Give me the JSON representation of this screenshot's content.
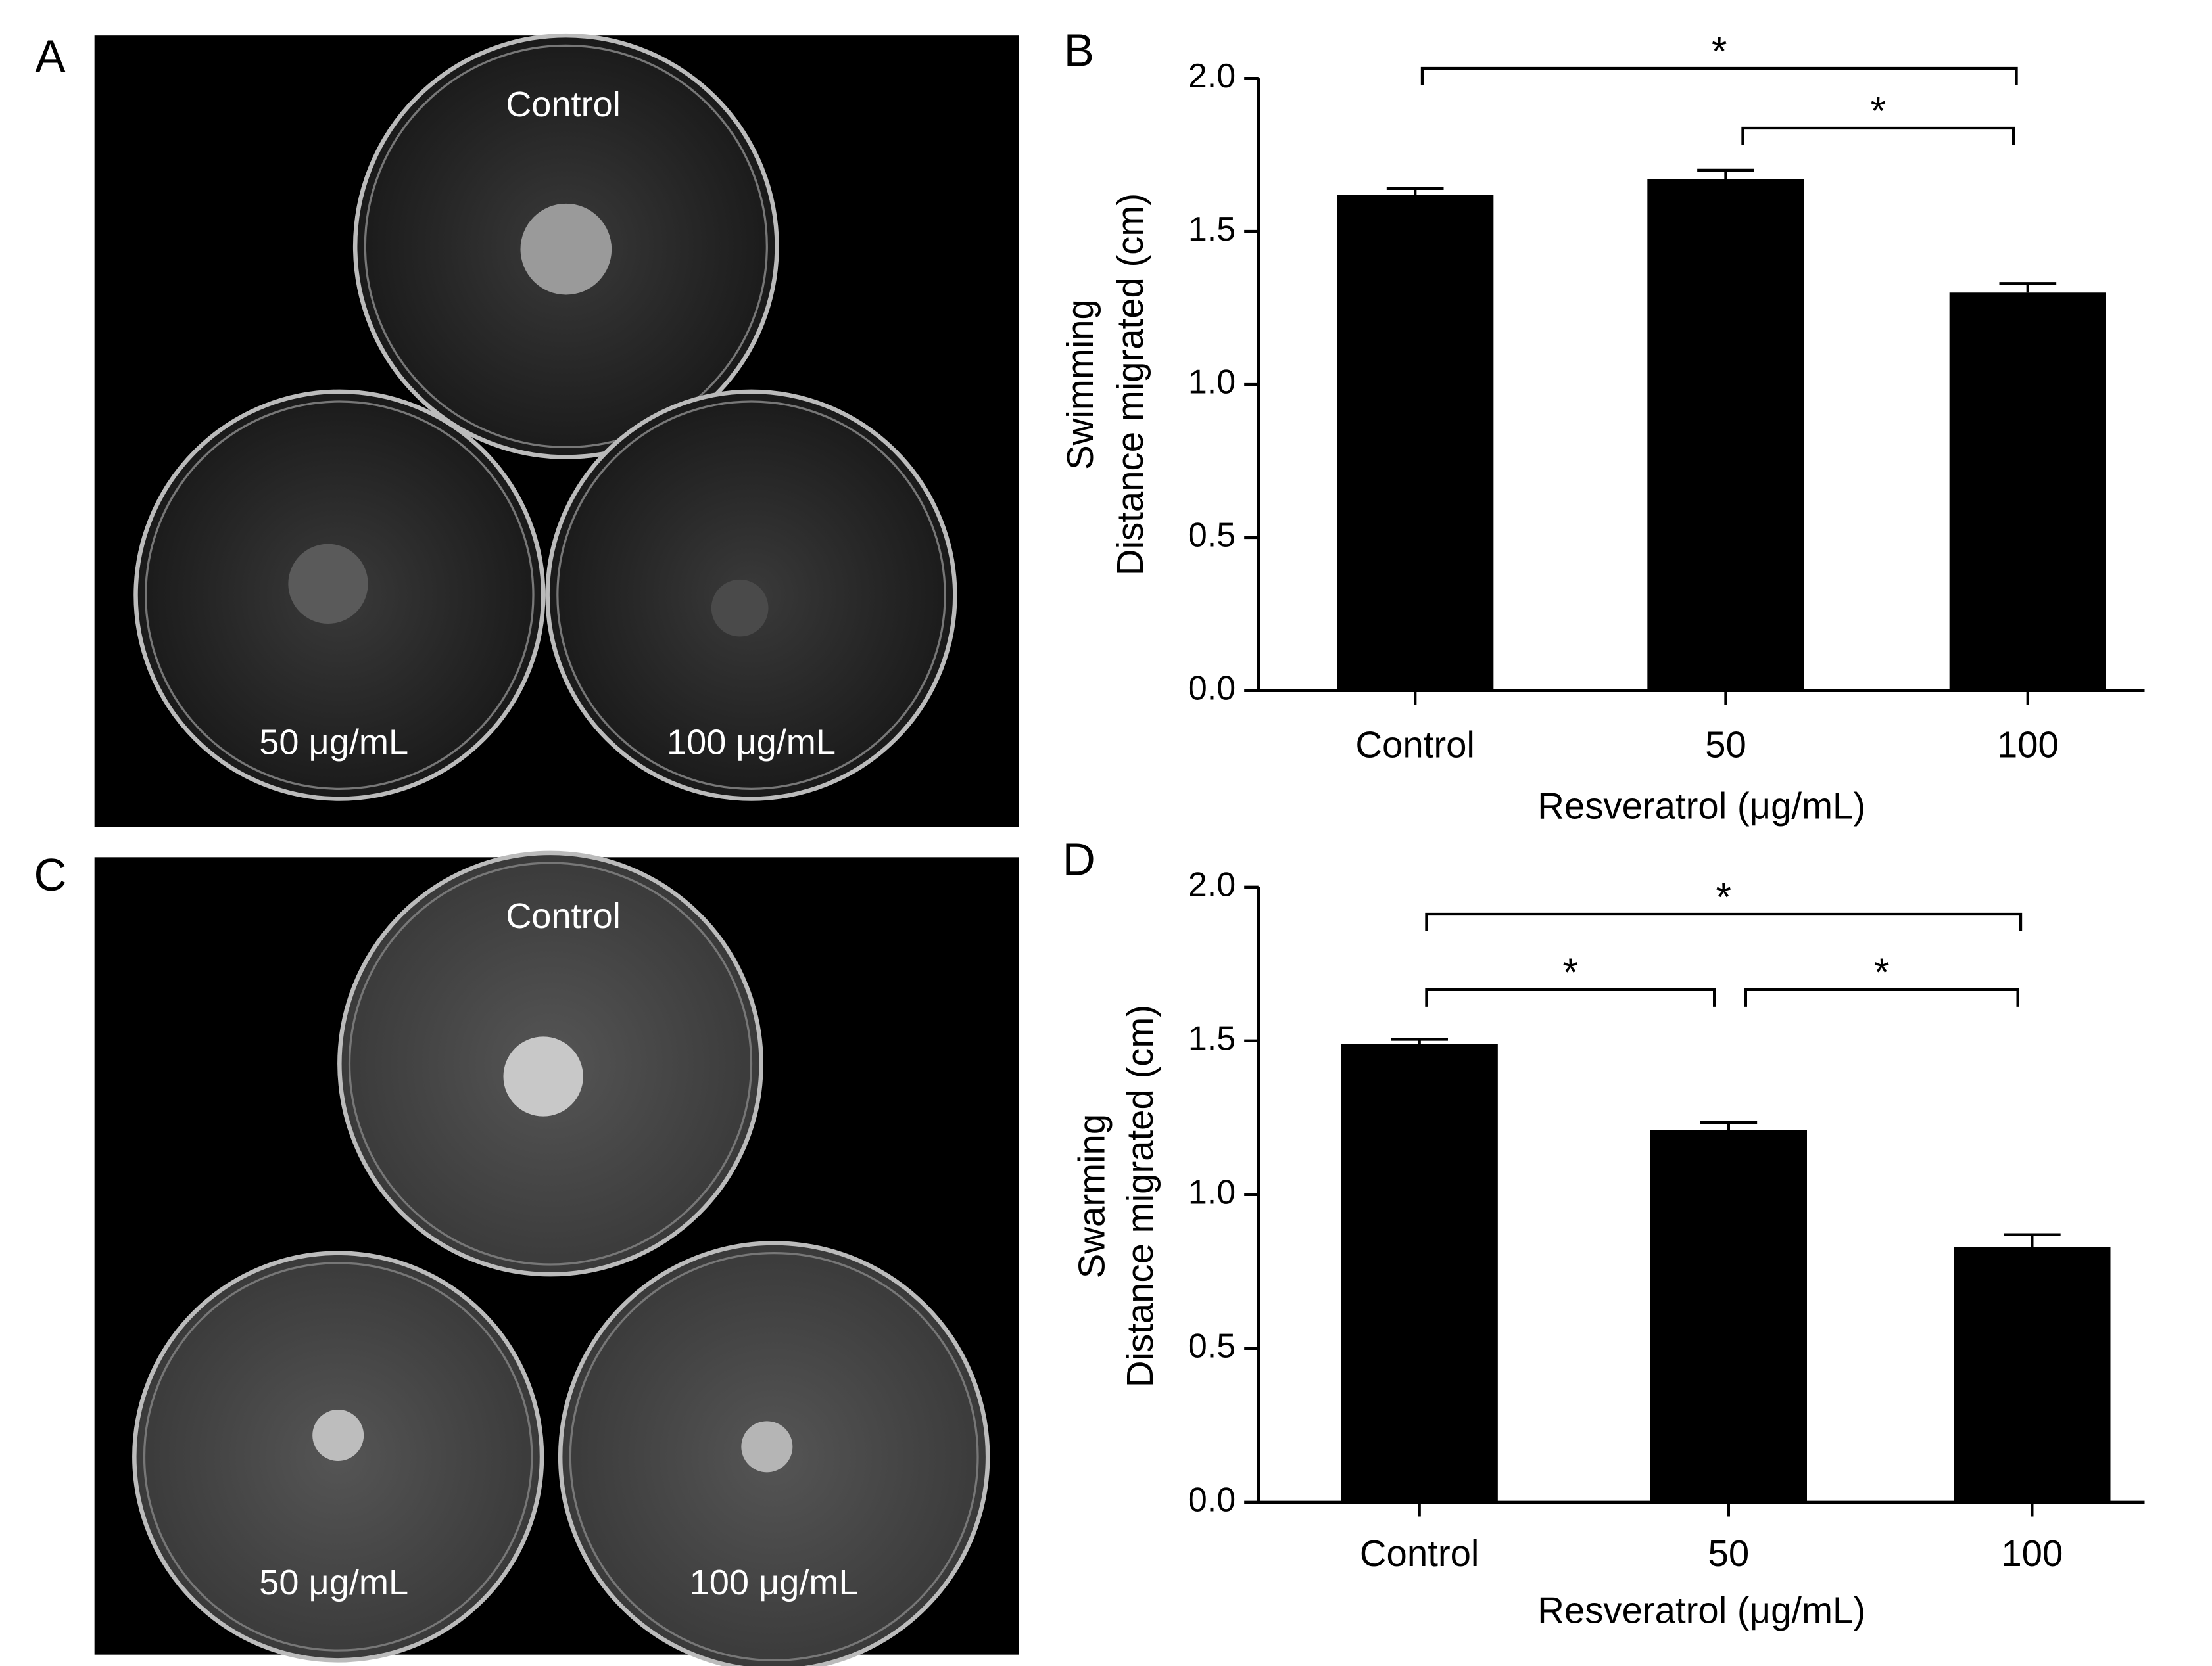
{
  "photos": [
    {
      "panel_label": "A",
      "plates": [
        "Control",
        "50 μg/mL",
        "100 μg/mL"
      ]
    },
    {
      "panel_label": "C",
      "plates": [
        "Control",
        "50 μg/mL",
        "100 μg/mL"
      ]
    }
  ],
  "chart_data": [
    {
      "type": "bar",
      "panel_label": "B",
      "y_label": [
        "Swimming",
        "Distance migrated (cm)"
      ],
      "x_label": "Resveratrol (μg/mL)",
      "categories": [
        "Control",
        "50",
        "100"
      ],
      "values": [
        1.62,
        1.67,
        1.3
      ],
      "errors": [
        0.02,
        0.03,
        0.03
      ],
      "color": "#000000",
      "ylim": [
        0,
        2
      ],
      "yticks": [
        {
          "value": 0,
          "label": "0.0"
        },
        {
          "value": 0.5,
          "label": "0.5"
        },
        {
          "value": 1,
          "label": "1.0"
        },
        {
          "value": 1.5,
          "label": "1.5"
        },
        {
          "value": 2,
          "label": "2.0"
        }
      ],
      "brackets": [
        {
          "label": "*",
          "pair": [
            0,
            2
          ]
        },
        {
          "label": "*",
          "pair": [
            1,
            2
          ]
        }
      ]
    },
    {
      "type": "bar",
      "panel_label": "D",
      "y_label": [
        "Swarming",
        "Distance migrated (cm)"
      ],
      "x_label": "Resveratrol (μg/mL)",
      "categories": [
        "Control",
        "50",
        "100"
      ],
      "values": [
        1.49,
        1.21,
        0.83
      ],
      "errors": [
        0.015,
        0.025,
        0.04
      ],
      "color": "#000000",
      "ylim": [
        0,
        2
      ],
      "yticks": [
        {
          "value": 0,
          "label": "0.0"
        },
        {
          "value": 0.5,
          "label": "0.5"
        },
        {
          "value": 1,
          "label": "1.0"
        },
        {
          "value": 1.5,
          "label": "1.5"
        },
        {
          "value": 2,
          "label": "2.0"
        }
      ],
      "brackets": [
        {
          "label": "*",
          "pair": [
            0,
            2
          ]
        },
        {
          "label": "*",
          "pair": [
            0,
            1
          ]
        },
        {
          "label": "*",
          "pair": [
            1,
            2
          ]
        }
      ]
    }
  ]
}
